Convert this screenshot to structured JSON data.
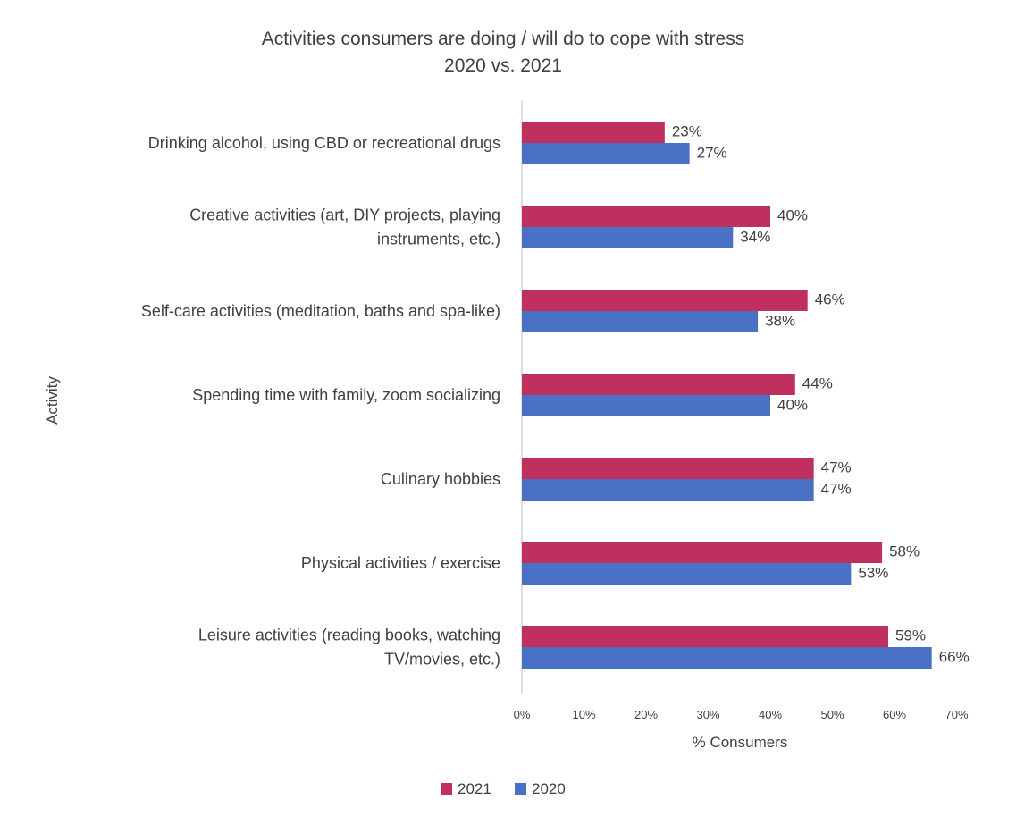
{
  "chart_data": {
    "type": "bar",
    "orientation": "horizontal",
    "title": "Activities consumers are doing / will do to cope with stress",
    "subtitle": "2020 vs. 2021",
    "xlabel": "% Consumers",
    "ylabel": "Activity",
    "xlim": [
      0,
      70
    ],
    "x_ticks": [
      "0%",
      "10%",
      "20%",
      "30%",
      "40%",
      "50%",
      "60%",
      "70%"
    ],
    "categories": [
      [
        "Drinking alcohol, using CBD or recreational drugs"
      ],
      [
        "Creative activities (art, DIY projects, playing",
        "instruments, etc.)"
      ],
      [
        "Self-care activities (meditation, baths and spa-like)"
      ],
      [
        "Spending time with family, zoom socializing"
      ],
      [
        "Culinary hobbies"
      ],
      [
        "Physical activities / exercise"
      ],
      [
        "Leisure activities (reading books, watching",
        "TV/movies, etc.)"
      ]
    ],
    "series": [
      {
        "name": "2021",
        "color": "#C0305F",
        "values": [
          23,
          40,
          46,
          44,
          47,
          58,
          59
        ],
        "labels": [
          "23%",
          "40%",
          "46%",
          "44%",
          "47%",
          "58%",
          "59%"
        ]
      },
      {
        "name": "2020",
        "color": "#4A72C4",
        "values": [
          27,
          34,
          38,
          40,
          47,
          53,
          66
        ],
        "labels": [
          "27%",
          "34%",
          "38%",
          "40%",
          "47%",
          "53%",
          "66%"
        ]
      }
    ],
    "grid": false,
    "legend_position": "bottom"
  }
}
